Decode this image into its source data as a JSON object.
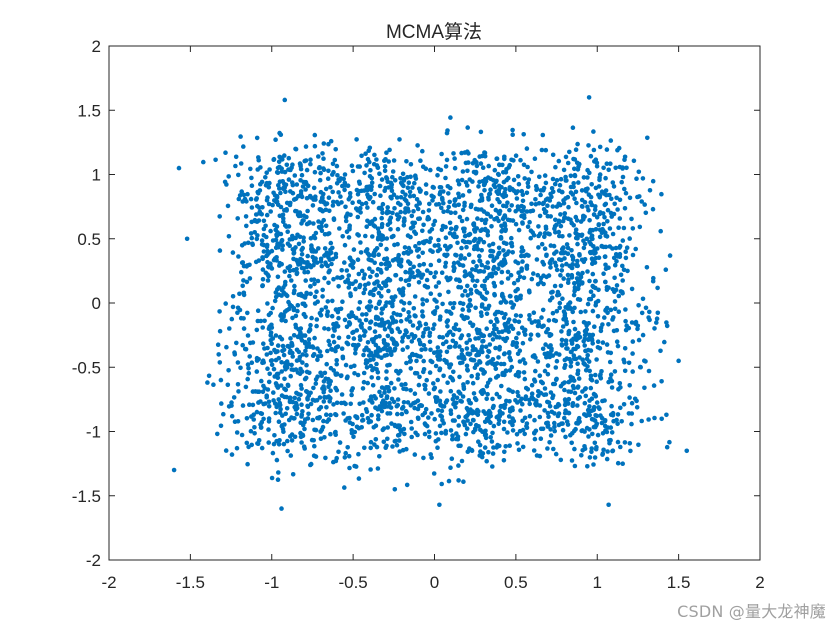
{
  "chart_data": {
    "type": "scatter",
    "title": "MCMA算法",
    "xlabel": "",
    "ylabel": "",
    "xlim": [
      -2,
      2
    ],
    "ylim": [
      -2,
      2
    ],
    "xticks": [
      "-2",
      "-1.5",
      "-1",
      "-0.5",
      "0",
      "0.5",
      "1",
      "1.5",
      "2"
    ],
    "yticks": [
      "2",
      "1.5",
      "1",
      "0.5",
      "0",
      "-0.5",
      "-1",
      "-1.5",
      "-2"
    ],
    "grid": false,
    "legend": "none",
    "marker_color": "#0072BD",
    "constellation": {
      "centers_x": [
        -0.9,
        -0.3,
        0.3,
        0.9
      ],
      "centers_y": [
        -0.85,
        -0.3,
        0.3,
        0.85
      ],
      "spread": 0.2
    },
    "points_outliers": [
      {
        "x": -0.92,
        "y": 1.58
      },
      {
        "x": 0.95,
        "y": 1.6
      },
      {
        "x": -1.57,
        "y": 1.05
      },
      {
        "x": -1.52,
        "y": 0.5
      },
      {
        "x": -1.6,
        "y": -1.3
      },
      {
        "x": 1.55,
        "y": -1.15
      },
      {
        "x": 1.5,
        "y": -0.45
      },
      {
        "x": -0.94,
        "y": -1.6
      },
      {
        "x": 0.03,
        "y": -1.57
      },
      {
        "x": 1.07,
        "y": -1.57
      }
    ]
  },
  "watermark": "CSDN @量大龙神魔"
}
